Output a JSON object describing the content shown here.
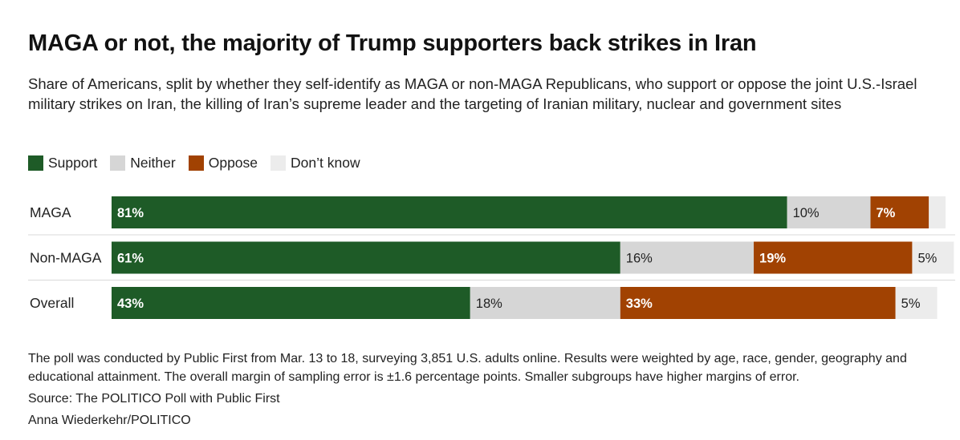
{
  "title": "MAGA or not, the majority of Trump supporters back strikes in Iran",
  "subtitle": "Share of Americans, split by whether they self-identify as MAGA or non-MAGA Republicans, who support or oppose the joint U.S.-Israel military strikes on Iran, the killing of Iran’s supreme leader and the targeting of Iranian military, nuclear and government sites",
  "legend": [
    {
      "label": "Support",
      "color": "#1e5b27"
    },
    {
      "label": "Neither",
      "color": "#d6d6d6"
    },
    {
      "label": "Oppose",
      "color": "#a14202"
    },
    {
      "label": "Don’t know",
      "color": "#ececec"
    }
  ],
  "chart_data": {
    "type": "bar",
    "orientation": "horizontal-stacked-100",
    "categories": [
      "MAGA",
      "Non-MAGA",
      "Overall"
    ],
    "series": [
      {
        "name": "Support",
        "values": [
          81,
          61,
          43
        ],
        "labels": [
          "81%",
          "61%",
          "43%"
        ],
        "color": "#1e5b27",
        "text_color": "#ffffff",
        "bold": true
      },
      {
        "name": "Neither",
        "values": [
          10,
          16,
          18
        ],
        "labels": [
          "10%",
          "16%",
          "18%"
        ],
        "color": "#d6d6d6",
        "text_color": "#222222",
        "bold": false
      },
      {
        "name": "Oppose",
        "values": [
          7,
          19,
          33
        ],
        "labels": [
          "7%",
          "19%",
          "33%"
        ],
        "color": "#a14202",
        "text_color": "#ffffff",
        "bold": true
      },
      {
        "name": "Don’t know",
        "values": [
          2,
          5,
          5
        ],
        "labels": [
          "",
          "5%",
          "5%"
        ],
        "color": "#ececec",
        "text_color": "#222222",
        "bold": false
      }
    ],
    "xlim": [
      0,
      100
    ],
    "legend_position": "top-left"
  },
  "footer": {
    "note": "The poll was conducted by Public First from Mar. 13 to 18, surveying 3,851 U.S. adults online. Results were weighted by age, race, gender, geography and educational attainment. The overall margin of sampling error is ±1.6 percentage points. Smaller subgroups have higher margins of error.",
    "source": "Source: The POLITICO Poll with Public First",
    "credit": "Anna Wiederkehr/POLITICO"
  }
}
